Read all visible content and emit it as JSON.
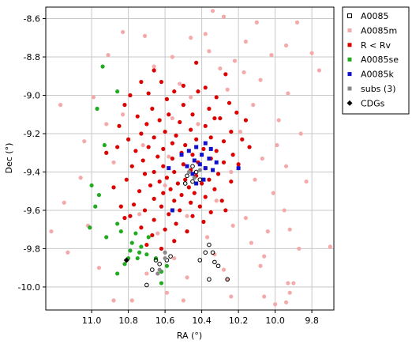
{
  "chart_data": {
    "type": "scatter",
    "xlabel": "RA (°)",
    "ylabel": "Dec (°)",
    "xlim": [
      11.25,
      9.68
    ],
    "ylim": [
      -10.12,
      -8.54
    ],
    "x_reversed": true,
    "grid": true,
    "legend_position": "top-right",
    "xticks": [
      11.0,
      10.8,
      10.6,
      10.4,
      10.2,
      10.0,
      9.8
    ],
    "xtick_labels": [
      "11.0",
      "10.8",
      "10.6",
      "10.4",
      "10.2",
      "10.0",
      "9.8"
    ],
    "yticks": [
      -8.6,
      -8.8,
      -9.0,
      -9.2,
      -9.4,
      -9.6,
      -9.8,
      -10.0
    ],
    "ytick_labels": [
      "-8.6",
      "-8.8",
      "-9.0",
      "-9.2",
      "-9.4",
      "-9.6",
      "-9.8",
      "-10.0"
    ],
    "series": [
      {
        "name": "A0085m",
        "marker": "circle",
        "color": "#f4aaaa",
        "points": [
          [
            10.34,
            -8.56
          ],
          [
            10.83,
            -8.67
          ],
          [
            10.28,
            -8.59
          ],
          [
            10.1,
            -8.62
          ],
          [
            9.88,
            -8.62
          ],
          [
            10.71,
            -8.69
          ],
          [
            10.46,
            -8.7
          ],
          [
            10.38,
            -8.68
          ],
          [
            10.16,
            -8.72
          ],
          [
            9.94,
            -8.74
          ],
          [
            9.8,
            -8.78
          ],
          [
            10.91,
            -8.79
          ],
          [
            10.56,
            -8.8
          ],
          [
            10.36,
            -8.77
          ],
          [
            10.22,
            -8.82
          ],
          [
            10.02,
            -8.79
          ],
          [
            10.66,
            -8.85
          ],
          [
            10.3,
            -8.86
          ],
          [
            10.17,
            -8.88
          ],
          [
            10.08,
            -8.92
          ],
          [
            9.76,
            -8.87
          ],
          [
            10.52,
            -8.94
          ],
          [
            10.26,
            -8.97
          ],
          [
            9.93,
            -8.99
          ],
          [
            10.99,
            -9.01
          ],
          [
            10.46,
            -9.01
          ],
          [
            10.12,
            -9.05
          ],
          [
            11.17,
            -9.05
          ],
          [
            10.83,
            -9.1
          ],
          [
            10.56,
            -9.12
          ],
          [
            9.98,
            -9.13
          ],
          [
            10.92,
            -9.15
          ],
          [
            10.42,
            -9.15
          ],
          [
            10.19,
            -9.19
          ],
          [
            9.86,
            -9.2
          ],
          [
            11.04,
            -9.24
          ],
          [
            10.72,
            -9.26
          ],
          [
            10.14,
            -9.27
          ],
          [
            9.99,
            -9.26
          ],
          [
            10.58,
            -9.32
          ],
          [
            10.07,
            -9.33
          ],
          [
            10.88,
            -9.35
          ],
          [
            9.94,
            -9.37
          ],
          [
            10.24,
            -9.4
          ],
          [
            11.06,
            -9.43
          ],
          [
            10.11,
            -9.44
          ],
          [
            10.6,
            -9.47
          ],
          [
            9.83,
            -9.45
          ],
          [
            10.01,
            -9.51
          ],
          [
            11.15,
            -9.56
          ],
          [
            10.32,
            -9.55
          ],
          [
            9.95,
            -9.6
          ],
          [
            10.74,
            -9.62
          ],
          [
            10.48,
            -9.63
          ],
          [
            10.16,
            -9.64
          ],
          [
            11.02,
            -9.68
          ],
          [
            10.23,
            -9.68
          ],
          [
            10.04,
            -9.71
          ],
          [
            9.92,
            -9.7
          ],
          [
            11.22,
            -9.71
          ],
          [
            10.64,
            -9.72
          ],
          [
            10.37,
            -9.74
          ],
          [
            10.13,
            -9.77
          ],
          [
            9.87,
            -9.8
          ],
          [
            9.7,
            -9.79
          ],
          [
            11.13,
            -9.82
          ],
          [
            10.55,
            -9.85
          ],
          [
            10.33,
            -9.83
          ],
          [
            10.06,
            -9.84
          ],
          [
            10.08,
            -9.89
          ],
          [
            10.28,
            -9.91
          ],
          [
            10.96,
            -9.9
          ],
          [
            10.7,
            -9.93
          ],
          [
            10.48,
            -9.95
          ],
          [
            10.26,
            -9.96
          ],
          [
            9.93,
            -9.98
          ],
          [
            9.9,
            -9.98
          ],
          [
            10.59,
            -10.03
          ],
          [
            10.24,
            -10.05
          ],
          [
            9.92,
            -10.03
          ],
          [
            10.88,
            -10.07
          ],
          [
            10.78,
            -10.07
          ],
          [
            10.06,
            -10.05
          ],
          [
            10.0,
            -10.09
          ],
          [
            9.94,
            -10.08
          ],
          [
            10.5,
            -10.07
          ]
        ]
      },
      {
        "name": "R < Rv",
        "marker": "circle",
        "color": "#dd0000",
        "points": [
          [
            10.43,
            -8.83
          ],
          [
            10.66,
            -8.87
          ],
          [
            10.27,
            -8.89
          ],
          [
            10.62,
            -8.93
          ],
          [
            10.73,
            -8.93
          ],
          [
            10.5,
            -8.95
          ],
          [
            10.38,
            -8.96
          ],
          [
            10.55,
            -8.98
          ],
          [
            10.69,
            -8.99
          ],
          [
            10.42,
            -8.98
          ],
          [
            10.79,
            -9.0
          ],
          [
            10.59,
            -9.02
          ],
          [
            10.32,
            -9.01
          ],
          [
            10.25,
            -9.04
          ],
          [
            10.5,
            -9.05
          ],
          [
            10.82,
            -9.05
          ],
          [
            10.67,
            -9.07
          ],
          [
            10.36,
            -9.07
          ],
          [
            10.45,
            -9.1
          ],
          [
            10.21,
            -9.09
          ],
          [
            10.58,
            -9.1
          ],
          [
            10.75,
            -9.11
          ],
          [
            10.3,
            -9.12
          ],
          [
            10.63,
            -9.13
          ],
          [
            10.16,
            -9.13
          ],
          [
            10.52,
            -9.14
          ],
          [
            10.7,
            -9.15
          ],
          [
            10.85,
            -9.16
          ],
          [
            10.38,
            -9.16
          ],
          [
            10.46,
            -9.18
          ],
          [
            10.6,
            -9.19
          ],
          [
            10.24,
            -9.19
          ],
          [
            10.73,
            -9.2
          ],
          [
            10.54,
            -9.21
          ],
          [
            10.35,
            -9.22
          ],
          [
            10.66,
            -9.22
          ],
          [
            10.43,
            -9.23
          ],
          [
            10.8,
            -9.23
          ],
          [
            10.18,
            -9.23
          ],
          [
            10.28,
            -9.24
          ],
          [
            10.56,
            -9.25
          ],
          [
            10.49,
            -9.26
          ],
          [
            10.69,
            -9.27
          ],
          [
            10.39,
            -9.28
          ],
          [
            10.61,
            -9.28
          ],
          [
            10.32,
            -9.29
          ],
          [
            10.76,
            -9.29
          ],
          [
            10.51,
            -9.3
          ],
          [
            10.23,
            -9.31
          ],
          [
            10.45,
            -9.31
          ],
          [
            10.64,
            -9.32
          ],
          [
            10.35,
            -9.33
          ],
          [
            10.56,
            -9.33
          ],
          [
            10.72,
            -9.34
          ],
          [
            10.42,
            -9.35
          ],
          [
            10.28,
            -9.35
          ],
          [
            10.5,
            -9.36
          ],
          [
            10.61,
            -9.37
          ],
          [
            10.78,
            -9.37
          ],
          [
            10.38,
            -9.38
          ],
          [
            10.46,
            -9.39
          ],
          [
            10.66,
            -9.4
          ],
          [
            10.55,
            -9.4
          ],
          [
            10.31,
            -9.41
          ],
          [
            10.71,
            -9.41
          ],
          [
            10.43,
            -9.42
          ],
          [
            10.59,
            -9.43
          ],
          [
            10.49,
            -9.44
          ],
          [
            10.36,
            -9.44
          ],
          [
            10.81,
            -9.44
          ],
          [
            10.63,
            -9.45
          ],
          [
            10.53,
            -9.46
          ],
          [
            10.4,
            -9.46
          ],
          [
            10.68,
            -9.47
          ],
          [
            10.47,
            -9.48
          ],
          [
            10.57,
            -9.49
          ],
          [
            10.33,
            -9.49
          ],
          [
            10.74,
            -9.5
          ],
          [
            10.44,
            -9.51
          ],
          [
            10.61,
            -9.51
          ],
          [
            10.51,
            -9.52
          ],
          [
            10.38,
            -9.53
          ],
          [
            10.66,
            -9.54
          ],
          [
            10.29,
            -9.55
          ],
          [
            10.55,
            -9.55
          ],
          [
            10.46,
            -9.56
          ],
          [
            10.77,
            -9.57
          ],
          [
            10.62,
            -9.58
          ],
          [
            10.41,
            -9.58
          ],
          [
            10.52,
            -9.6
          ],
          [
            10.71,
            -9.6
          ],
          [
            10.35,
            -9.61
          ],
          [
            10.58,
            -9.62
          ],
          [
            10.45,
            -9.63
          ],
          [
            10.82,
            -9.64
          ],
          [
            10.66,
            -9.65
          ],
          [
            10.54,
            -9.67
          ],
          [
            10.39,
            -9.66
          ],
          [
            10.73,
            -9.69
          ],
          [
            10.6,
            -9.7
          ],
          [
            10.48,
            -9.71
          ],
          [
            10.67,
            -9.73
          ],
          [
            10.55,
            -9.76
          ],
          [
            10.7,
            -9.78
          ],
          [
            10.62,
            -9.8
          ],
          [
            10.92,
            -9.3
          ],
          [
            10.88,
            -9.48
          ],
          [
            10.84,
            -9.58
          ],
          [
            10.79,
            -9.63
          ],
          [
            10.86,
            -9.27
          ],
          [
            10.24,
            -9.45
          ],
          [
            10.2,
            -9.36
          ],
          [
            10.14,
            -9.27
          ],
          [
            10.27,
            -9.6
          ],
          [
            10.33,
            -9.12
          ]
        ]
      },
      {
        "name": "A0085se",
        "marker": "circle",
        "color": "#22aa22",
        "points": [
          [
            10.94,
            -8.85
          ],
          [
            10.86,
            -8.98
          ],
          [
            10.97,
            -9.07
          ],
          [
            10.93,
            -9.26
          ],
          [
            11.0,
            -9.47
          ],
          [
            10.96,
            -9.52
          ],
          [
            10.98,
            -9.58
          ],
          [
            10.84,
            -9.71
          ],
          [
            10.76,
            -9.72
          ],
          [
            10.69,
            -9.74
          ],
          [
            10.78,
            -9.77
          ],
          [
            10.73,
            -9.79
          ],
          [
            10.79,
            -9.81
          ],
          [
            10.8,
            -9.85
          ],
          [
            10.75,
            -9.85
          ],
          [
            10.7,
            -9.83
          ],
          [
            10.82,
            -9.88
          ],
          [
            10.59,
            -9.89
          ],
          [
            10.62,
            -9.92
          ],
          [
            10.65,
            -9.85
          ],
          [
            11.01,
            -9.69
          ],
          [
            10.92,
            -9.74
          ],
          [
            10.86,
            -9.93
          ],
          [
            10.62,
            -9.98
          ],
          [
            10.74,
            -9.82
          ],
          [
            10.86,
            -9.67
          ]
        ]
      },
      {
        "name": "A0085k",
        "marker": "square",
        "color": "#1111cc",
        "points": [
          [
            10.38,
            -9.25
          ],
          [
            10.35,
            -9.28
          ],
          [
            10.43,
            -9.27
          ],
          [
            10.47,
            -9.29
          ],
          [
            10.4,
            -9.31
          ],
          [
            10.36,
            -9.33
          ],
          [
            10.44,
            -9.34
          ],
          [
            10.32,
            -9.35
          ],
          [
            10.41,
            -9.36
          ],
          [
            10.48,
            -9.37
          ],
          [
            10.38,
            -9.38
          ],
          [
            10.34,
            -9.39
          ],
          [
            10.58,
            -9.38
          ],
          [
            10.45,
            -9.41
          ],
          [
            10.51,
            -9.31
          ],
          [
            10.39,
            -9.44
          ],
          [
            10.43,
            -9.46
          ],
          [
            10.56,
            -9.6
          ],
          [
            10.2,
            -9.38
          ]
        ]
      },
      {
        "name": "A0085",
        "marker": "open-circle",
        "color": "#000000",
        "points": [
          [
            10.45,
            -9.37
          ],
          [
            10.43,
            -9.4
          ],
          [
            10.48,
            -9.42
          ],
          [
            10.41,
            -9.44
          ],
          [
            10.45,
            -9.45
          ],
          [
            10.49,
            -9.46
          ],
          [
            10.36,
            -9.78
          ],
          [
            10.38,
            -9.82
          ],
          [
            10.34,
            -9.82
          ],
          [
            10.41,
            -9.86
          ],
          [
            10.33,
            -9.87
          ],
          [
            10.57,
            -9.84
          ],
          [
            10.59,
            -9.86
          ],
          [
            10.63,
            -9.88
          ],
          [
            10.67,
            -9.91
          ],
          [
            10.36,
            -9.96
          ],
          [
            10.26,
            -9.96
          ],
          [
            10.31,
            -9.89
          ],
          [
            10.7,
            -9.99
          ],
          [
            10.65,
            -9.86
          ]
        ]
      },
      {
        "name": "subs (3)",
        "marker": "circle",
        "color": "#888888",
        "points": [
          [
            10.41,
            -9.39
          ],
          [
            10.47,
            -9.4
          ],
          [
            10.44,
            -9.43
          ],
          [
            10.6,
            -9.85
          ],
          [
            10.63,
            -9.91
          ],
          [
            10.6,
            -9.82
          ],
          [
            10.64,
            -9.93
          ]
        ]
      },
      {
        "name": "CDGs",
        "marker": "diamond",
        "color": "#000000",
        "points": [
          [
            10.81,
            -9.86
          ]
        ]
      }
    ],
    "legend_entries": [
      "A0085",
      "A0085m",
      "R < Rv",
      "A0085se",
      "A0085k",
      "subs (3)",
      "CDGs"
    ]
  }
}
